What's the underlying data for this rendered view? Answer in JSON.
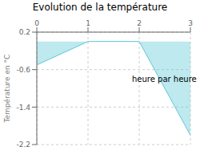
{
  "chart_data": {
    "type": "area",
    "title": "Evolution de la température",
    "y_label": "Température en °C",
    "annotation": "heure par heure",
    "x": [
      0,
      1,
      2,
      3
    ],
    "values": [
      -0.5,
      0.0,
      0.0,
      -2.0
    ],
    "color": "#5bc8d8",
    "xlim": [
      0,
      3
    ],
    "ylim": [
      -2.2,
      0.2
    ],
    "xticks": [
      0,
      1,
      2,
      3
    ],
    "yticks": [
      0.2,
      -0.6,
      -1.4,
      -2.2
    ],
    "grid": true
  }
}
